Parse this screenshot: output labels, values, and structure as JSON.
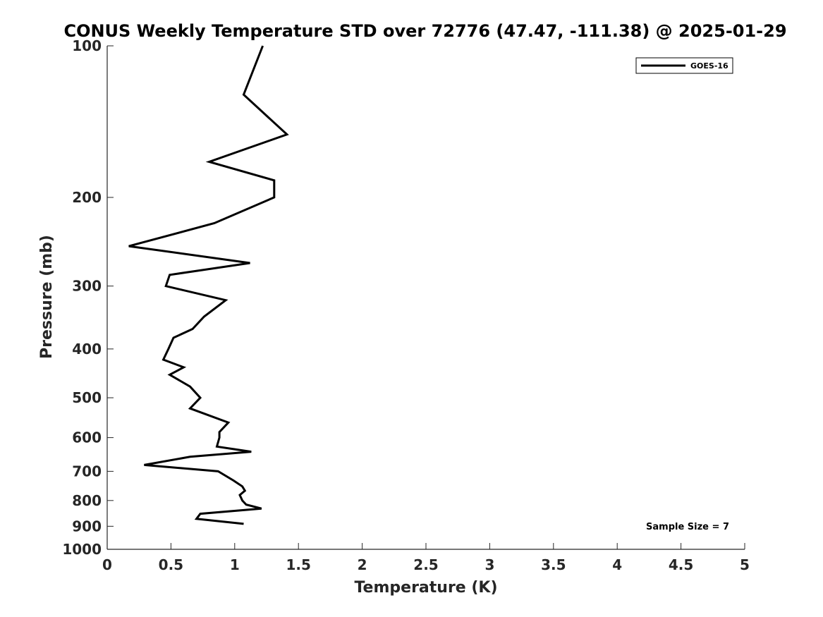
{
  "chart_data": {
    "type": "line",
    "title": "CONUS Weekly Temperature STD over 72776 (47.47, -111.38) @ 2025-01-29",
    "xlabel": "Temperature (K)",
    "ylabel": "Pressure (mb)",
    "xlim": [
      0,
      5
    ],
    "ylim": [
      1000,
      100
    ],
    "yscale": "log",
    "y_reversed": true,
    "grid": false,
    "legend_position": "top-right",
    "x_ticks": [
      "0",
      "0.5",
      "1",
      "1.5",
      "2",
      "2.5",
      "3",
      "3.5",
      "4",
      "4.5",
      "5"
    ],
    "y_ticks": [
      "100",
      "200",
      "300",
      "400",
      "500",
      "600",
      "700",
      "800",
      "900",
      "1000"
    ],
    "series": [
      {
        "name": "GOES-16",
        "color": "#000000",
        "points": [
          [
            1.22,
            100
          ],
          [
            1.07,
            125
          ],
          [
            1.41,
            150
          ],
          [
            0.8,
            170
          ],
          [
            1.31,
            185
          ],
          [
            1.31,
            200
          ],
          [
            0.84,
            225
          ],
          [
            0.17,
            250
          ],
          [
            1.12,
            270
          ],
          [
            0.49,
            285
          ],
          [
            0.46,
            300
          ],
          [
            0.93,
            320
          ],
          [
            0.76,
            345
          ],
          [
            0.67,
            365
          ],
          [
            0.52,
            380
          ],
          [
            0.48,
            400
          ],
          [
            0.44,
            420
          ],
          [
            0.6,
            435
          ],
          [
            0.49,
            450
          ],
          [
            0.65,
            475
          ],
          [
            0.73,
            500
          ],
          [
            0.65,
            525
          ],
          [
            0.95,
            560
          ],
          [
            0.88,
            585
          ],
          [
            0.88,
            600
          ],
          [
            0.86,
            625
          ],
          [
            1.13,
            640
          ],
          [
            0.65,
            655
          ],
          [
            0.29,
            680
          ],
          [
            0.87,
            700
          ],
          [
            0.99,
            730
          ],
          [
            1.06,
            750
          ],
          [
            1.08,
            765
          ],
          [
            1.04,
            780
          ],
          [
            1.06,
            800
          ],
          [
            1.09,
            815
          ],
          [
            1.21,
            830
          ],
          [
            0.73,
            850
          ],
          [
            0.7,
            870
          ],
          [
            1.07,
            890
          ]
        ]
      }
    ],
    "annotation": "Sample Size = 7"
  }
}
